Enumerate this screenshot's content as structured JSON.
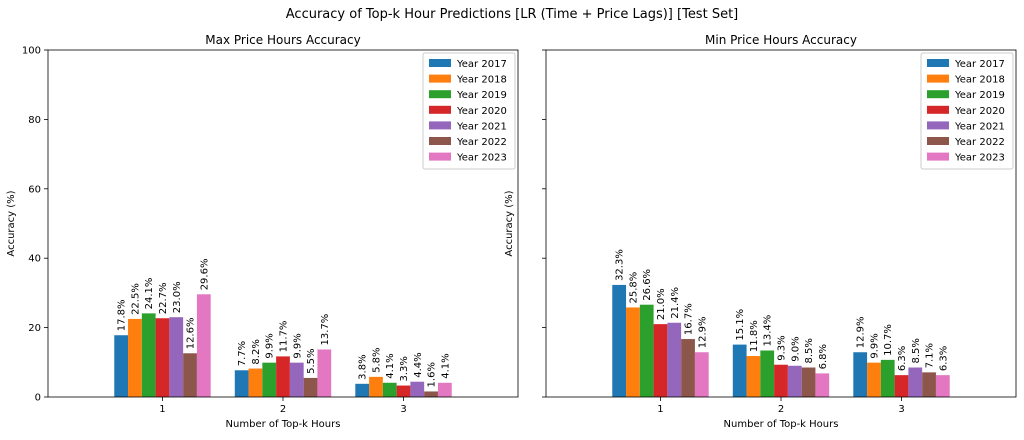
{
  "figure": {
    "title": "Accuracy of Top-k Hour Predictions [LR (Time + Price Lags)] [Test Set]"
  },
  "chart_data": [
    {
      "type": "bar",
      "title": "Max Price Hours Accuracy",
      "xlabel": "Number of Top-k Hours",
      "ylabel": "Accuracy (%)",
      "ylim": [
        0,
        100
      ],
      "yticks": [
        0,
        20,
        40,
        60,
        80,
        100
      ],
      "show_yticklabels": true,
      "legend_position": "top-right",
      "categories": [
        "1",
        "2",
        "3"
      ],
      "series": [
        {
          "name": "Year 2017",
          "color": "#1f77b4",
          "values": [
            17.8,
            7.7,
            3.8
          ],
          "labels": [
            "17.8%",
            "7.7%",
            "3.8%"
          ]
        },
        {
          "name": "Year 2018",
          "color": "#ff7f0e",
          "values": [
            22.5,
            8.2,
            5.8
          ],
          "labels": [
            "22.5%",
            "8.2%",
            "5.8%"
          ]
        },
        {
          "name": "Year 2019",
          "color": "#2ca02c",
          "values": [
            24.1,
            9.9,
            4.1
          ],
          "labels": [
            "24.1%",
            "9.9%",
            "4.1%"
          ]
        },
        {
          "name": "Year 2020",
          "color": "#d62728",
          "values": [
            22.7,
            11.7,
            3.3
          ],
          "labels": [
            "22.7%",
            "11.7%",
            "3.3%"
          ]
        },
        {
          "name": "Year 2021",
          "color": "#9467bd",
          "values": [
            23.0,
            9.9,
            4.4
          ],
          "labels": [
            "23.0%",
            "9.9%",
            "4.4%"
          ]
        },
        {
          "name": "Year 2022",
          "color": "#8c564b",
          "values": [
            12.6,
            5.5,
            1.6
          ],
          "labels": [
            "12.6%",
            "5.5%",
            "1.6%"
          ]
        },
        {
          "name": "Year 2023",
          "color": "#e377c2",
          "values": [
            29.6,
            13.7,
            4.1
          ],
          "labels": [
            "29.6%",
            "13.7%",
            "4.1%"
          ]
        }
      ]
    },
    {
      "type": "bar",
      "title": "Min Price Hours Accuracy",
      "xlabel": "Number of Top-k Hours",
      "ylabel": "Accuracy (%)",
      "ylim": [
        0,
        100
      ],
      "yticks": [
        0,
        20,
        40,
        60,
        80,
        100
      ],
      "show_yticklabels": false,
      "legend_position": "top-right",
      "categories": [
        "1",
        "2",
        "3"
      ],
      "series": [
        {
          "name": "Year 2017",
          "color": "#1f77b4",
          "values": [
            32.3,
            15.1,
            12.9
          ],
          "labels": [
            "32.3%",
            "15.1%",
            "12.9%"
          ]
        },
        {
          "name": "Year 2018",
          "color": "#ff7f0e",
          "values": [
            25.8,
            11.8,
            9.9
          ],
          "labels": [
            "25.8%",
            "11.8%",
            "9.9%"
          ]
        },
        {
          "name": "Year 2019",
          "color": "#2ca02c",
          "values": [
            26.6,
            13.4,
            10.7
          ],
          "labels": [
            "26.6%",
            "13.4%",
            "10.7%"
          ]
        },
        {
          "name": "Year 2020",
          "color": "#d62728",
          "values": [
            21.0,
            9.3,
            6.3
          ],
          "labels": [
            "21.0%",
            "9.3%",
            "6.3%"
          ]
        },
        {
          "name": "Year 2021",
          "color": "#9467bd",
          "values": [
            21.4,
            9.0,
            8.5
          ],
          "labels": [
            "21.4%",
            "9.0%",
            "8.5%"
          ]
        },
        {
          "name": "Year 2022",
          "color": "#8c564b",
          "values": [
            16.7,
            8.5,
            7.1
          ],
          "labels": [
            "16.7%",
            "8.5%",
            "7.1%"
          ]
        },
        {
          "name": "Year 2023",
          "color": "#e377c2",
          "values": [
            12.9,
            6.8,
            6.3
          ],
          "labels": [
            "12.9%",
            "6.8%",
            "6.3%"
          ]
        }
      ]
    }
  ]
}
